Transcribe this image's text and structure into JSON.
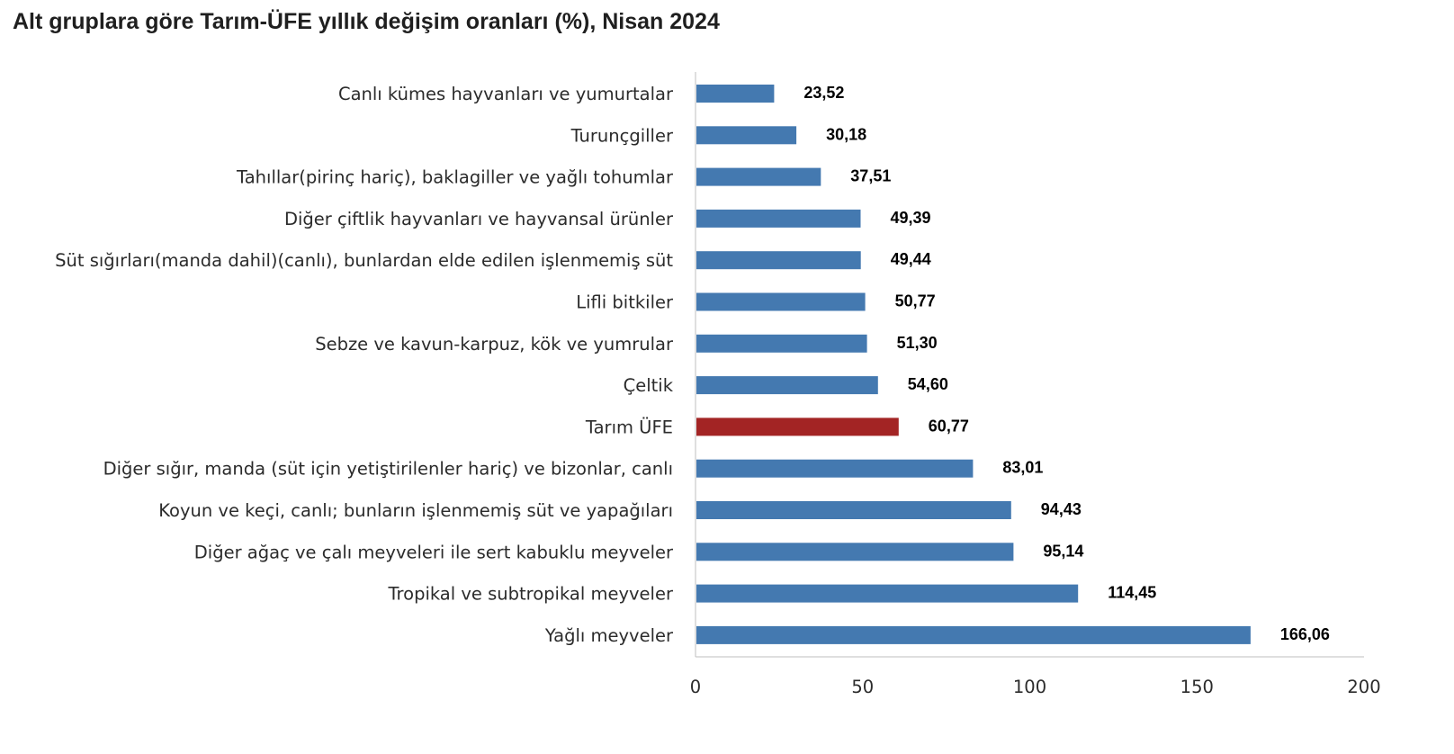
{
  "chart_data": {
    "type": "bar",
    "orientation": "horizontal",
    "title": "Alt gruplara göre Tarım-ÜFE yıllık değişim oranları (%), Nisan 2024",
    "categories": [
      "Canlı kümes hayvanları ve yumurtalar",
      "Turunçgiller",
      "Tahıllar(pirinç hariç), baklagiller ve yağlı tohumlar",
      "Diğer çiftlik hayvanları ve hayvansal ürünler",
      "Süt sığırları(manda dahil)(canlı), bunlardan elde edilen işlenmemiş süt",
      "Lifli bitkiler",
      "Sebze ve kavun-karpuz, kök ve yumrular",
      "Çeltik",
      "Tarım ÜFE",
      "Diğer sığır, manda (süt için yetiştirilenler hariç) ve bizonlar, canlı",
      "Koyun ve keçi, canlı; bunların işlenmemiş süt ve yapağıları",
      "Diğer ağaç ve çalı meyveleri ile sert kabuklu meyveler",
      "Tropikal ve subtropikal meyveler",
      "Yağlı meyveler"
    ],
    "values": [
      23.52,
      30.18,
      37.51,
      49.39,
      49.44,
      50.77,
      51.3,
      54.6,
      60.77,
      83.01,
      94.43,
      95.14,
      114.45,
      166.06
    ],
    "value_labels": [
      "23,52",
      "30,18",
      "37,51",
      "49,39",
      "49,44",
      "50,77",
      "51,30",
      "54,60",
      "60,77",
      "83,01",
      "94,43",
      "95,14",
      "114,45",
      "166,06"
    ],
    "highlight_category": "Tarım ÜFE",
    "colors": {
      "bar": "#4479b0",
      "highlight": "#a32424",
      "axis": "#bfbfbf"
    },
    "xlim": [
      0,
      200
    ],
    "xticks": [
      0,
      50,
      100,
      150,
      200
    ],
    "xtick_labels": [
      "0",
      "50",
      "100",
      "150",
      "200"
    ],
    "xlabel": "",
    "ylabel": "",
    "grid": false,
    "legend": false
  }
}
